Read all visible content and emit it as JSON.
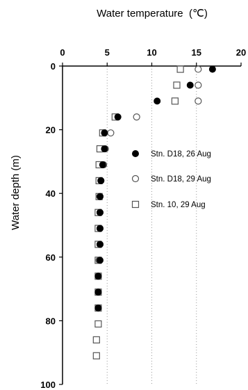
{
  "chart_data": {
    "type": "scatter",
    "title": "",
    "xlabel": "Water temperature  (℃)",
    "ylabel": "Water depth (m)",
    "x_axis_position": "top",
    "y_axis_inverted": true,
    "xlim": [
      0,
      20
    ],
    "ylim": [
      0,
      100
    ],
    "x_ticks": [
      "0",
      "5",
      "10",
      "15",
      "20"
    ],
    "y_ticks": [
      "0",
      "20",
      "40",
      "60",
      "80",
      "100"
    ],
    "grid": "vertical dotted lines at 5, 10, 15",
    "legend_position": "right, middle",
    "series": [
      {
        "name": "Stn. D18, 26 Aug",
        "marker": "filled-circle",
        "points": [
          [
            16.8,
            1
          ],
          [
            14.3,
            6
          ],
          [
            10.6,
            11
          ],
          [
            6.2,
            16
          ],
          [
            4.7,
            21
          ],
          [
            4.7,
            26
          ],
          [
            4.5,
            31
          ],
          [
            4.3,
            36
          ],
          [
            4.2,
            41
          ],
          [
            4.2,
            46
          ],
          [
            4.2,
            51
          ],
          [
            4.2,
            56
          ],
          [
            4.2,
            61
          ],
          [
            4.0,
            66
          ],
          [
            4.0,
            71
          ],
          [
            4.0,
            76
          ]
        ]
      },
      {
        "name": "Stn. D18, 29 Aug",
        "marker": "open-circle",
        "points": [
          [
            15.2,
            1
          ],
          [
            15.2,
            6
          ],
          [
            15.2,
            11
          ],
          [
            8.3,
            16
          ],
          [
            5.4,
            21
          ],
          [
            4.8,
            26
          ],
          [
            4.6,
            31
          ],
          [
            4.3,
            36
          ],
          [
            4.2,
            41
          ],
          [
            4.2,
            46
          ],
          [
            4.2,
            51
          ],
          [
            4.2,
            56
          ],
          [
            4.1,
            61
          ]
        ]
      },
      {
        "name": "Stn. 10, 29 Aug",
        "marker": "open-square",
        "points": [
          [
            13.2,
            1
          ],
          [
            12.8,
            6
          ],
          [
            12.6,
            11
          ],
          [
            5.9,
            16
          ],
          [
            4.5,
            21
          ],
          [
            4.2,
            26
          ],
          [
            4.1,
            31
          ],
          [
            4.1,
            36
          ],
          [
            4.1,
            41
          ],
          [
            4.0,
            46
          ],
          [
            4.0,
            51
          ],
          [
            4.0,
            56
          ],
          [
            4.0,
            61
          ],
          [
            4.0,
            66
          ],
          [
            4.0,
            71
          ],
          [
            4.0,
            76
          ],
          [
            4.0,
            81
          ],
          [
            3.8,
            86
          ],
          [
            3.8,
            91
          ]
        ]
      }
    ]
  }
}
